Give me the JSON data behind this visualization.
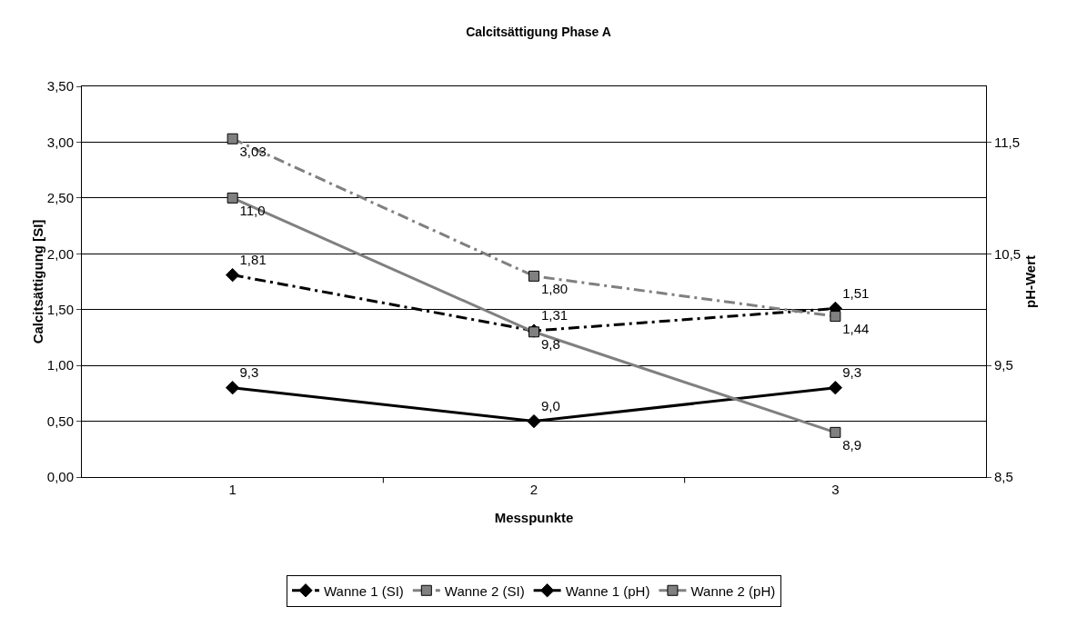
{
  "chart_data": {
    "type": "line",
    "title": "Calcitsättigung Phase A",
    "xlabel": "Messpunkte",
    "ylabel": "Calcitsättigung [SI]",
    "y2label": "pH-Wert",
    "categories": [
      "1",
      "2",
      "3"
    ],
    "series": [
      {
        "name": "Wanne 1 (SI)",
        "color": "#000000",
        "values": [
          1.81,
          1.31,
          1.51
        ],
        "value_labels": [
          "1,81",
          "1,31",
          "1,51"
        ],
        "marker": "diamond",
        "line_style": "dashed"
      },
      {
        "name": "Wanne 2 (SI)",
        "color": "#808080",
        "values": [
          3.03,
          1.8,
          1.44
        ],
        "value_labels": [
          "3,03",
          "1,80",
          "1,44"
        ],
        "marker": "square",
        "line_style": "dashed"
      },
      {
        "name": "Wanne 1 (pH)",
        "color": "#000000",
        "values": [
          9.3,
          9.0,
          9.3
        ],
        "value_labels": [
          "9,3",
          "9,0",
          "9,3"
        ],
        "marker": "diamond",
        "line_style": "solid",
        "axis": "y2"
      },
      {
        "name": "Wanne 2 (pH)",
        "color": "#808080",
        "values": [
          11.0,
          9.8,
          8.9
        ],
        "value_labels": [
          "11,0",
          "9,8",
          "8,9"
        ],
        "marker": "square",
        "line_style": "solid",
        "axis": "y2"
      }
    ],
    "ylim": [
      0,
      3.5
    ],
    "yticks": [
      {
        "value": 0,
        "label": "0,00"
      },
      {
        "value": 0.5,
        "label": "0,50"
      },
      {
        "value": 1,
        "label": "1,00"
      },
      {
        "value": 1.5,
        "label": "1,50"
      },
      {
        "value": 2,
        "label": "2,00"
      },
      {
        "value": 2.5,
        "label": "2,50"
      },
      {
        "value": 3,
        "label": "3,00"
      },
      {
        "value": 3.5,
        "label": "3,50"
      }
    ],
    "y2lim": [
      8.5,
      12.0
    ],
    "y2ticks": [
      {
        "value": 8.5,
        "label": "8,5"
      },
      {
        "value": 9.5,
        "label": "9,5"
      },
      {
        "value": 10.5,
        "label": "10,5"
      },
      {
        "value": 11.5,
        "label": "11,5"
      }
    ],
    "grid": "y",
    "legend": "bottom"
  }
}
